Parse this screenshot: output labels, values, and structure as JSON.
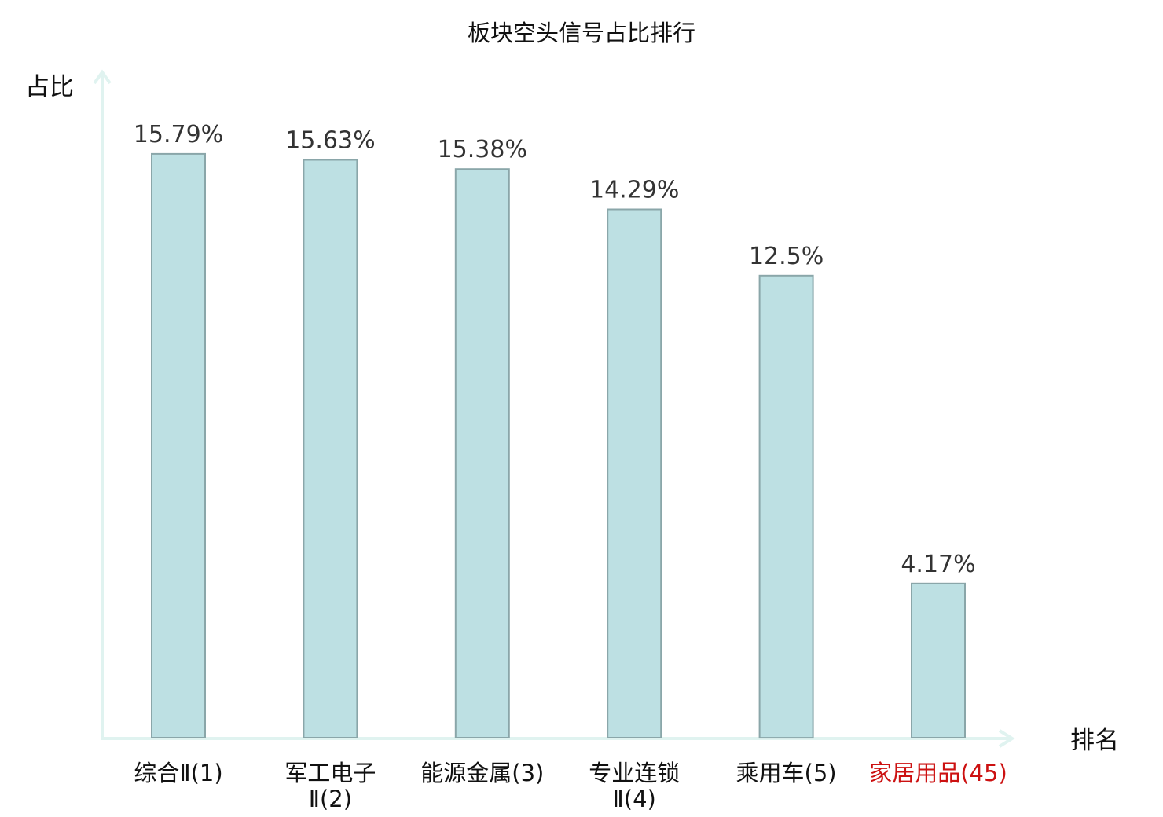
{
  "chart_data": {
    "type": "bar",
    "title": "板块空头信号占比排行",
    "ylabel": "占比",
    "xlabel": "排名",
    "categories": [
      {
        "name": "综合Ⅱ",
        "rank": "(1)",
        "lines": [
          "综合Ⅱ(1)"
        ],
        "highlight": false
      },
      {
        "name": "军工电子Ⅱ",
        "rank": "(2)",
        "lines": [
          "军工电子",
          "Ⅱ(2)"
        ],
        "highlight": false
      },
      {
        "name": "能源金属",
        "rank": "(3)",
        "lines": [
          "能源金属(3)"
        ],
        "highlight": false
      },
      {
        "name": "专业连锁Ⅱ",
        "rank": "(4)",
        "lines": [
          "专业连锁",
          "Ⅱ(4)"
        ],
        "highlight": false
      },
      {
        "name": "乘用车",
        "rank": "(5)",
        "lines": [
          "乘用车(5)"
        ],
        "highlight": false
      },
      {
        "name": "家居用品",
        "rank": "(45)",
        "lines": [
          "家居用品(45)"
        ],
        "highlight": true
      }
    ],
    "values": [
      15.79,
      15.63,
      15.38,
      14.29,
      12.5,
      4.17
    ],
    "value_labels": [
      "15.79%",
      "15.63%",
      "15.38%",
      "14.29%",
      "12.5%",
      "4.17%"
    ],
    "unit": "%",
    "ylim": [
      0,
      17.5
    ],
    "grid": false,
    "legend": "none",
    "colors": {
      "bar_fill": "#bde0e3",
      "bar_stroke": "#8aa6a9",
      "axis": "#e0f3f0",
      "highlight_text": "#cc1111",
      "normal_text": "#111111"
    }
  }
}
